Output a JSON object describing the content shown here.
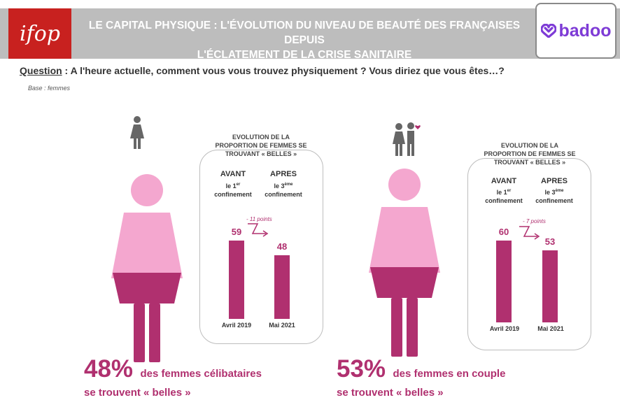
{
  "header": {
    "ifop_logo": "ifop",
    "title_line1": "LE CAPITAL PHYSIQUE : L'ÉVOLUTION DU NIVEAU DE BEAUTÉ DES FRANÇAISES DEPUIS",
    "title_line2": "L'ÉCLATEMENT DE LA CRISE SANITAIRE",
    "badoo_logo": "badoo"
  },
  "question": {
    "label": "Question",
    "text": " : A l'heure actuelle, comment vous vous trouvez physiquement ? Vous diriez que vous êtes…?"
  },
  "base": "Base : femmes",
  "colors": {
    "primary": "#b0306f",
    "light_pink": "#f4a7cf",
    "header_gray": "#bdbdbd",
    "ifop_red": "#c8211f",
    "badoo_purple": "#7e3bd6"
  },
  "icons": {
    "single": "woman-icon",
    "couple": "couple-icon",
    "badoo": "heart-icon"
  },
  "chart_data": [
    {
      "type": "bar",
      "title": "EVOLUTION DE LA PROPORTION DE FEMMES SE TROUVANT « BELLES »",
      "title_lines": [
        "EVOLUTION DE LA",
        "PROPORTION DE FEMMES SE",
        "TROUVANT « BELLES »"
      ],
      "categories": [
        "Avril 2019",
        "Mai 2021"
      ],
      "values": [
        59,
        48
      ],
      "column_headers": [
        {
          "head": "AVANT",
          "sub1": "le 1",
          "sup": "er",
          "sub2": "confinement"
        },
        {
          "head": "APRES",
          "sub1": "le 3",
          "sup": "ème",
          "sub2": "confinement"
        }
      ],
      "difference": "- 11 points",
      "ylim": [
        0,
        100
      ],
      "headline_pct": "48%",
      "headline_text_1": "des femmes célibataires",
      "headline_text_2": "se trouvent « belles »"
    },
    {
      "type": "bar",
      "title": "EVOLUTION DE LA PROPORTION DE FEMMES SE TROUVANT « BELLES »",
      "title_lines": [
        "EVOLUTION DE LA",
        "PROPORTION DE FEMMES SE",
        "TROUVANT « BELLES »"
      ],
      "categories": [
        "Avril 2019",
        "Mai 2021"
      ],
      "values": [
        60,
        53
      ],
      "column_headers": [
        {
          "head": "AVANT",
          "sub1": "le 1",
          "sup": "er",
          "sub2": "confinement"
        },
        {
          "head": "APRES",
          "sub1": "le 3",
          "sup": "ème",
          "sub2": "confinement"
        }
      ],
      "difference": "- 7 points",
      "ylim": [
        0,
        100
      ],
      "headline_pct": "53%",
      "headline_text_1": "des femmes en couple",
      "headline_text_2": "se trouvent « belles »"
    }
  ]
}
